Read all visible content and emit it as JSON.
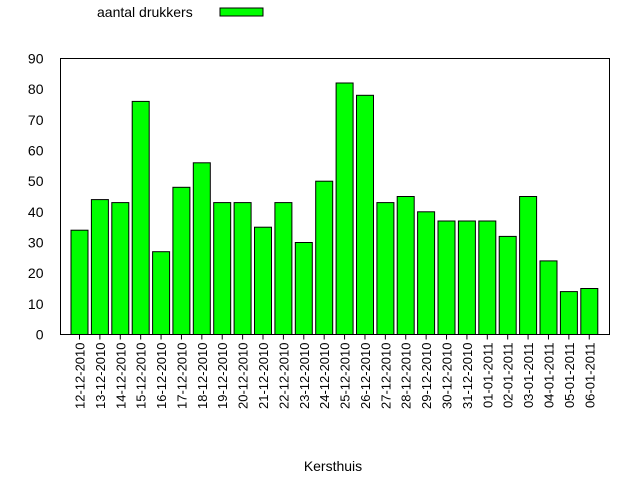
{
  "chart_data": {
    "type": "bar",
    "title": "",
    "xlabel": "Kersthuis",
    "ylabel": "",
    "ylim": [
      0,
      90
    ],
    "yticks": [
      0,
      10,
      20,
      30,
      40,
      50,
      60,
      70,
      80,
      90
    ],
    "grid": false,
    "legend_placement": "top-left",
    "categories": [
      "12-12-2010",
      "13-12-2010",
      "14-12-2010",
      "15-12-2010",
      "16-12-2010",
      "17-12-2010",
      "18-12-2010",
      "19-12-2010",
      "20-12-2010",
      "21-12-2010",
      "22-12-2010",
      "23-12-2010",
      "24-12-2010",
      "25-12-2010",
      "26-12-2010",
      "27-12-2010",
      "28-12-2010",
      "29-12-2010",
      "30-12-2010",
      "31-12-2010",
      "01-01-2011",
      "02-01-2011",
      "03-01-2011",
      "04-01-2011",
      "05-01-2011",
      "06-01-2011"
    ],
    "series": [
      {
        "name": "aantal drukkers",
        "color": "#00ff00",
        "values": [
          34,
          44,
          43,
          76,
          27,
          48,
          56,
          43,
          43,
          35,
          43,
          30,
          50,
          82,
          78,
          43,
          45,
          40,
          37,
          37,
          37,
          32,
          45,
          24,
          14,
          15
        ]
      }
    ]
  }
}
